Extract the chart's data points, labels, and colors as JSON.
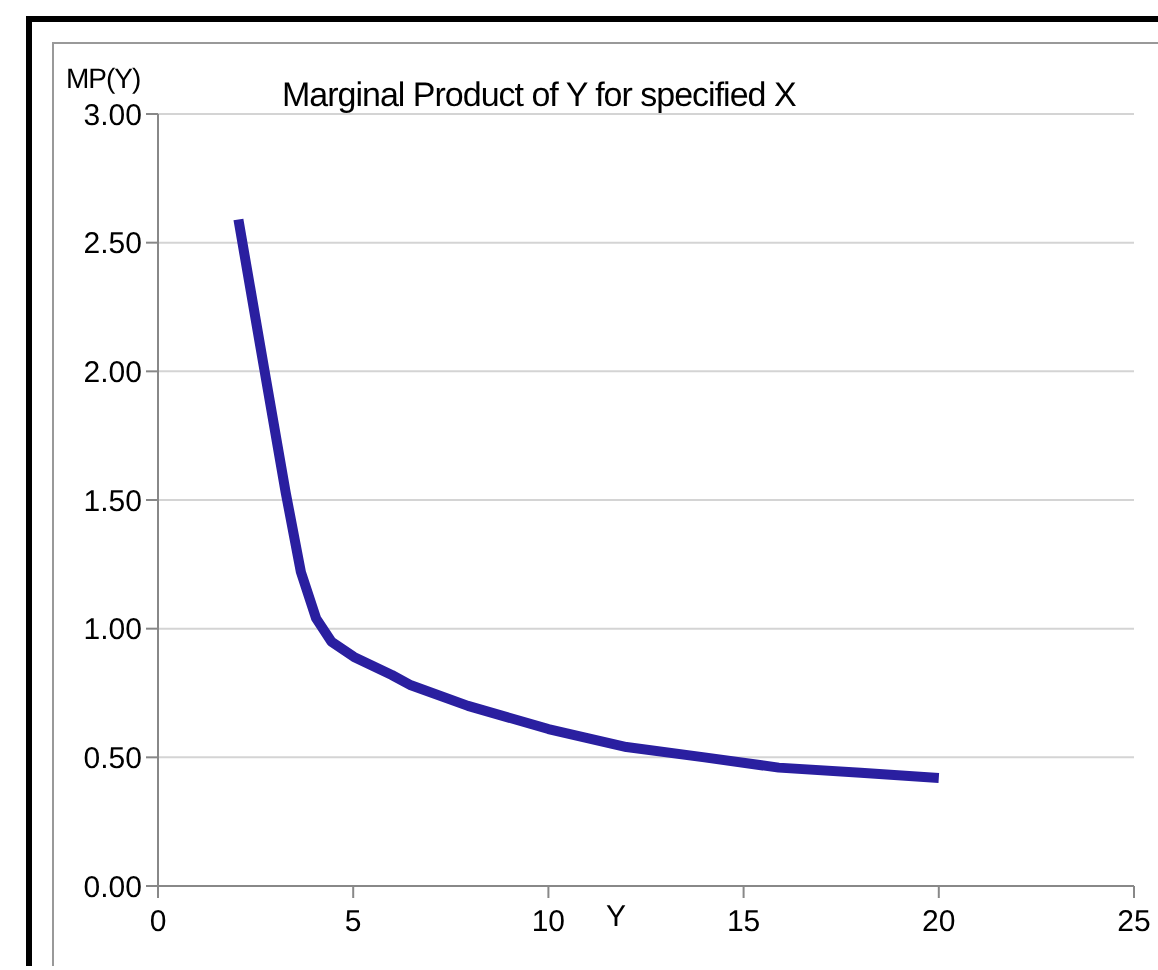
{
  "chart_data": {
    "type": "line",
    "title": "Marginal Product of Y for specified X",
    "xlabel": "Y",
    "ylabel": "MP(Y)",
    "x": [
      2.06,
      2.72,
      3.27,
      3.66,
      4.05,
      4.44,
      5.02,
      5.99,
      6.48,
      7.94,
      10,
      12,
      14,
      15.9,
      18,
      20
    ],
    "series": [
      {
        "color": "#2a1fa0",
        "values": [
          2.59,
          2.01,
          1.53,
          1.22,
          1.04,
          0.95,
          0.89,
          0.82,
          0.78,
          0.7,
          0.61,
          0.54,
          0.5,
          0.46,
          0.44,
          0.42
        ]
      }
    ],
    "xlim": [
      0,
      25
    ],
    "xticks": [
      0,
      5,
      10,
      15,
      20,
      25
    ],
    "ylim": [
      0,
      3
    ],
    "yticks": [
      {
        "value": 0,
        "label": "0.00"
      },
      {
        "value": 0.5,
        "label": "0.50"
      },
      {
        "value": 1,
        "label": "1.00"
      },
      {
        "value": 1.5,
        "label": "1.50"
      },
      {
        "value": 2,
        "label": "2.00"
      },
      {
        "value": 2.5,
        "label": "2.50"
      },
      {
        "value": 3,
        "label": "3.00"
      }
    ],
    "grid": "y",
    "legend": false,
    "marker": "none",
    "line_style": "solid"
  }
}
